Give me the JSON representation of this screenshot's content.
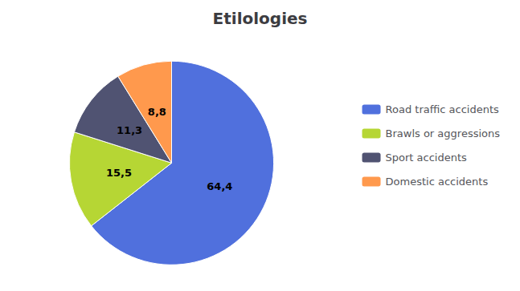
{
  "chart_data": {
    "type": "pie",
    "title": "Etilologies",
    "categories": [
      "Road traffic accidents",
      "Brawls or aggressions",
      "Sport accidents",
      "Domestic accidents"
    ],
    "values": [
      64.4,
      15.5,
      11.3,
      8.8
    ],
    "value_labels": [
      "64,4",
      "15,5",
      "11,3",
      "8,8"
    ],
    "data_labels": true,
    "legend": "right"
  }
}
